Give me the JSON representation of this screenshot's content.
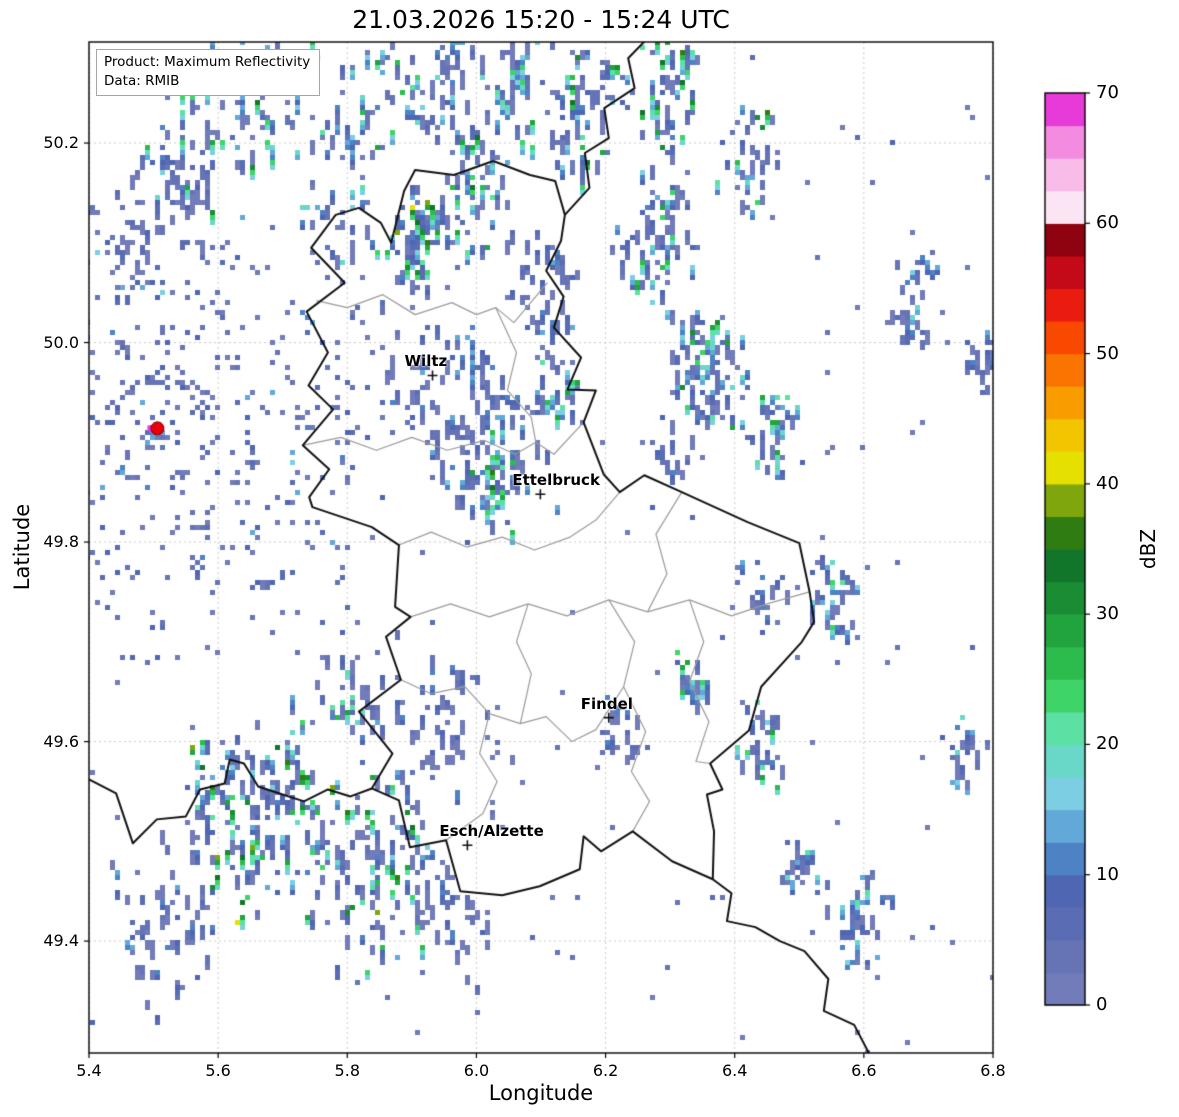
{
  "title": "21.03.2026 15:20 - 15:24 UTC",
  "info_box": {
    "product": "Product: Maximum Reflectivity",
    "data": "Data: RMIB"
  },
  "axes": {
    "xlabel": "Longitude",
    "ylabel": "Latitude",
    "xticks": [
      5.4,
      5.6,
      5.8,
      6.0,
      6.2,
      6.4,
      6.6,
      6.8
    ],
    "yticks": [
      49.4,
      49.6,
      49.8,
      50.0,
      50.2
    ],
    "xlim": [
      5.4,
      6.8
    ],
    "ylim": [
      49.2878,
      50.3013
    ],
    "grid": true
  },
  "colorbar": {
    "label": "dBZ",
    "ticks": [
      0,
      10,
      20,
      30,
      40,
      50,
      60,
      70
    ],
    "vmin": 0,
    "vmax": 70,
    "step": 2.5,
    "colors": [
      "#717cb8",
      "#6674b6",
      "#5a6db4",
      "#4f66b2",
      "#4d82c4",
      "#62a8d8",
      "#7ccfe2",
      "#6ad8c8",
      "#5ce0a4",
      "#3fd468",
      "#2cbc4e",
      "#21a43e",
      "#198c34",
      "#12762a",
      "#2f7d12",
      "#7fa60c",
      "#e6e000",
      "#f2c500",
      "#f99c00",
      "#f97400",
      "#f94800",
      "#ea1c10",
      "#c40a18",
      "#8f0310",
      "#fbe4f3",
      "#f9bce9",
      "#f38ce0",
      "#e83ad8"
    ]
  },
  "chart_data": {
    "type": "heatmap",
    "title": "21.03.2026 15:20 - 15:24 UTC",
    "xlabel": "Longitude",
    "ylabel": "Latitude",
    "xlim": [
      5.4,
      6.8
    ],
    "ylim": [
      49.2878,
      50.3013
    ],
    "value_units": "dBZ",
    "value_range": [
      0,
      70
    ],
    "product": "Maximum Reflectivity",
    "source": "RMIB",
    "radar_site": {
      "lon": 5.506,
      "lat": 49.914,
      "marker_color": "#e8000b",
      "adjacent_pixel_color": "#e83ad8"
    },
    "cities": [
      {
        "name": "Wiltz",
        "lon": 5.932,
        "lat": 49.967
      },
      {
        "name": "Ettelbruck",
        "lon": 6.099,
        "lat": 49.848
      },
      {
        "name": "Findel",
        "lon": 6.205,
        "lat": 49.624
      },
      {
        "name": "Esch/Alzette",
        "lon": 5.986,
        "lat": 49.496
      }
    ],
    "clutter_rings": {
      "lon": 5.506,
      "lat": 49.914,
      "rmax_km": 26,
      "n": 3000,
      "dmax": 9,
      "seed": 42
    },
    "speckle": {
      "n": 260,
      "dmax": 10,
      "seed": 77
    },
    "echo_clusters": [
      {
        "x": 5.62,
        "y": 50.235,
        "len": 0.3,
        "wid": 0.035,
        "ang": 30,
        "n": 150,
        "dmax": 34,
        "pow": 2.6
      },
      {
        "x": 5.5,
        "y": 50.13,
        "len": 0.18,
        "wid": 0.03,
        "ang": 25,
        "n": 60,
        "dmax": 10,
        "pow": 2.0
      },
      {
        "x": 5.82,
        "y": 50.2,
        "len": 0.24,
        "wid": 0.03,
        "ang": 55,
        "n": 110,
        "dmax": 30,
        "pow": 2.6
      },
      {
        "x": 5.95,
        "y": 50.26,
        "len": 0.12,
        "wid": 0.025,
        "ang": 60,
        "n": 60,
        "dmax": 20,
        "pow": 2.0
      },
      {
        "x": 5.9,
        "y": 50.11,
        "len": 0.1,
        "wid": 0.022,
        "ang": 65,
        "n": 85,
        "dmax": 42,
        "pow": 3.0
      },
      {
        "x": 5.99,
        "y": 50.15,
        "len": 0.12,
        "wid": 0.025,
        "ang": 65,
        "n": 80,
        "dmax": 35,
        "pow": 2.8
      },
      {
        "x": 6.06,
        "y": 50.27,
        "len": 0.12,
        "wid": 0.02,
        "ang": 60,
        "n": 55,
        "dmax": 26,
        "pow": 2.4
      },
      {
        "x": 6.16,
        "y": 50.235,
        "len": 0.14,
        "wid": 0.025,
        "ang": 60,
        "n": 85,
        "dmax": 34,
        "pow": 2.6
      },
      {
        "x": 6.3,
        "y": 50.245,
        "len": 0.12,
        "wid": 0.025,
        "ang": 65,
        "n": 75,
        "dmax": 36,
        "pow": 2.6
      },
      {
        "x": 6.28,
        "y": 50.11,
        "len": 0.13,
        "wid": 0.028,
        "ang": 65,
        "n": 95,
        "dmax": 32,
        "pow": 2.4
      },
      {
        "x": 6.35,
        "y": 49.975,
        "len": 0.1,
        "wid": 0.03,
        "ang": 70,
        "n": 115,
        "dmax": 34,
        "pow": 2.2
      },
      {
        "x": 6.43,
        "y": 50.185,
        "len": 0.1,
        "wid": 0.02,
        "ang": 65,
        "n": 55,
        "dmax": 36,
        "pow": 2.8
      },
      {
        "x": 6.46,
        "y": 49.915,
        "len": 0.08,
        "wid": 0.02,
        "ang": 70,
        "n": 45,
        "dmax": 30,
        "pow": 2.4
      },
      {
        "x": 6.1,
        "y": 50.05,
        "len": 0.1,
        "wid": 0.03,
        "ang": 60,
        "n": 60,
        "dmax": 14,
        "pow": 1.8
      },
      {
        "x": 5.97,
        "y": 49.94,
        "len": 0.14,
        "wid": 0.06,
        "ang": 45,
        "n": 160,
        "dmax": 16,
        "pow": 2.2
      },
      {
        "x": 6.03,
        "y": 49.87,
        "len": 0.08,
        "wid": 0.03,
        "ang": 50,
        "n": 70,
        "dmax": 44,
        "pow": 3.2
      },
      {
        "x": 6.12,
        "y": 49.96,
        "len": 0.06,
        "wid": 0.02,
        "ang": 60,
        "n": 35,
        "dmax": 30,
        "pow": 2.4
      },
      {
        "x": 6.55,
        "y": 49.745,
        "len": 0.07,
        "wid": 0.018,
        "ang": 65,
        "n": 45,
        "dmax": 26,
        "pow": 2.0
      },
      {
        "x": 6.67,
        "y": 50.05,
        "len": 0.09,
        "wid": 0.02,
        "ang": 65,
        "n": 45,
        "dmax": 22,
        "pow": 2.0
      },
      {
        "x": 6.78,
        "y": 49.98,
        "len": 0.06,
        "wid": 0.015,
        "ang": 60,
        "n": 25,
        "dmax": 14,
        "pow": 2.0
      },
      {
        "x": 6.44,
        "y": 49.6,
        "len": 0.07,
        "wid": 0.018,
        "ang": 65,
        "n": 45,
        "dmax": 30,
        "pow": 2.4
      },
      {
        "x": 6.33,
        "y": 49.665,
        "len": 0.04,
        "wid": 0.015,
        "ang": 60,
        "n": 25,
        "dmax": 30,
        "pow": 2.2
      },
      {
        "x": 6.75,
        "y": 49.59,
        "len": 0.07,
        "wid": 0.015,
        "ang": 70,
        "n": 30,
        "dmax": 24,
        "pow": 2.0
      },
      {
        "x": 6.6,
        "y": 49.42,
        "len": 0.1,
        "wid": 0.02,
        "ang": 60,
        "n": 45,
        "dmax": 22,
        "pow": 2.0
      },
      {
        "x": 6.5,
        "y": 49.475,
        "len": 0.05,
        "wid": 0.015,
        "ang": 60,
        "n": 25,
        "dmax": 24,
        "pow": 2.0
      },
      {
        "x": 5.85,
        "y": 49.48,
        "len": 0.16,
        "wid": 0.05,
        "ang": 25,
        "n": 150,
        "dmax": 40,
        "pow": 2.8
      },
      {
        "x": 5.66,
        "y": 49.525,
        "len": 0.18,
        "wid": 0.05,
        "ang": 15,
        "n": 200,
        "dmax": 42,
        "pow": 2.6
      },
      {
        "x": 5.52,
        "y": 49.43,
        "len": 0.14,
        "wid": 0.05,
        "ang": 20,
        "n": 80,
        "dmax": 14,
        "pow": 2.0
      },
      {
        "x": 5.96,
        "y": 49.425,
        "len": 0.08,
        "wid": 0.035,
        "ang": 55,
        "n": 50,
        "dmax": 12,
        "pow": 1.8
      },
      {
        "x": 5.8,
        "y": 49.645,
        "len": 0.07,
        "wid": 0.03,
        "ang": 40,
        "n": 55,
        "dmax": 30,
        "pow": 3.0
      },
      {
        "x": 5.95,
        "y": 49.63,
        "len": 0.12,
        "wid": 0.05,
        "ang": 45,
        "n": 70,
        "dmax": 12,
        "pow": 1.8
      },
      {
        "x": 6.22,
        "y": 49.615,
        "len": 0.05,
        "wid": 0.02,
        "ang": 60,
        "n": 25,
        "dmax": 12,
        "pow": 1.8
      },
      {
        "x": 6.44,
        "y": 49.76,
        "len": 0.05,
        "wid": 0.02,
        "ang": 60,
        "n": 30,
        "dmax": 16,
        "pow": 2.0
      },
      {
        "x": 6.3,
        "y": 49.9,
        "len": 0.05,
        "wid": 0.02,
        "ang": 60,
        "n": 30,
        "dmax": 14,
        "pow": 2.0
      }
    ]
  },
  "map": {
    "country_border": [
      [
        6.026,
        50.182
      ],
      [
        6.083,
        50.168
      ],
      [
        6.122,
        50.162
      ],
      [
        6.137,
        50.128
      ],
      [
        6.131,
        50.102
      ],
      [
        6.108,
        50.072
      ],
      [
        6.135,
        50.046
      ],
      [
        6.12,
        50.015
      ],
      [
        6.162,
        49.985
      ],
      [
        6.141,
        49.953
      ],
      [
        6.185,
        49.952
      ],
      [
        6.166,
        49.92
      ],
      [
        6.197,
        49.868
      ],
      [
        6.222,
        49.85
      ],
      [
        6.26,
        49.867
      ],
      [
        6.318,
        49.85
      ],
      [
        6.42,
        49.82
      ],
      [
        6.5,
        49.799
      ],
      [
        6.516,
        49.75
      ],
      [
        6.523,
        49.72
      ],
      [
        6.504,
        49.7
      ],
      [
        6.441,
        49.655
      ],
      [
        6.422,
        49.611
      ],
      [
        6.362,
        49.578
      ],
      [
        6.381,
        49.552
      ],
      [
        6.357,
        49.547
      ],
      [
        6.368,
        49.51
      ],
      [
        6.366,
        49.462
      ],
      [
        6.303,
        49.48
      ],
      [
        6.242,
        49.51
      ],
      [
        6.193,
        49.49
      ],
      [
        6.166,
        49.505
      ],
      [
        6.16,
        49.472
      ],
      [
        6.098,
        49.455
      ],
      [
        6.04,
        49.446
      ],
      [
        5.975,
        49.45
      ],
      [
        5.953,
        49.501
      ],
      [
        5.897,
        49.494
      ],
      [
        5.88,
        49.541
      ],
      [
        5.838,
        49.553
      ],
      [
        5.87,
        49.588
      ],
      [
        5.818,
        49.63
      ],
      [
        5.883,
        49.662
      ],
      [
        5.86,
        49.705
      ],
      [
        5.898,
        49.725
      ],
      [
        5.874,
        49.735
      ],
      [
        5.88,
        49.797
      ],
      [
        5.838,
        49.815
      ],
      [
        5.746,
        49.835
      ],
      [
        5.741,
        49.845
      ],
      [
        5.772,
        49.873
      ],
      [
        5.731,
        49.897
      ],
      [
        5.778,
        49.933
      ],
      [
        5.74,
        49.957
      ],
      [
        5.77,
        49.99
      ],
      [
        5.737,
        50.031
      ],
      [
        5.796,
        50.06
      ],
      [
        5.744,
        50.095
      ],
      [
        5.782,
        50.128
      ],
      [
        5.818,
        50.135
      ],
      [
        5.852,
        50.12
      ],
      [
        5.868,
        50.1
      ],
      [
        5.888,
        50.152
      ],
      [
        5.905,
        50.173
      ],
      [
        5.965,
        50.168
      ],
      [
        6.026,
        50.182
      ]
    ],
    "national_borders": [
      [
        [
          6.137,
          50.128
        ],
        [
          6.175,
          50.155
        ],
        [
          6.168,
          50.19
        ],
        [
          6.205,
          50.205
        ],
        [
          6.198,
          50.235
        ],
        [
          6.245,
          50.255
        ],
        [
          6.235,
          50.285
        ],
        [
          6.265,
          50.305
        ]
      ],
      [
        [
          6.366,
          49.462
        ],
        [
          6.395,
          49.448
        ],
        [
          6.388,
          49.42
        ],
        [
          6.432,
          49.414
        ],
        [
          6.47,
          49.4
        ],
        [
          6.508,
          49.39
        ],
        [
          6.545,
          49.362
        ],
        [
          6.538,
          49.33
        ],
        [
          6.585,
          49.316
        ],
        [
          6.61,
          49.285
        ]
      ],
      [
        [
          5.838,
          49.553
        ],
        [
          5.805,
          49.545
        ],
        [
          5.77,
          49.552
        ],
        [
          5.733,
          49.54
        ],
        [
          5.695,
          49.548
        ],
        [
          5.662,
          49.555
        ],
        [
          5.64,
          49.578
        ],
        [
          5.618,
          49.582
        ],
        [
          5.61,
          49.558
        ],
        [
          5.572,
          49.552
        ],
        [
          5.55,
          49.525
        ],
        [
          5.505,
          49.522
        ],
        [
          5.468,
          49.498
        ],
        [
          5.442,
          49.548
        ],
        [
          5.4,
          49.562
        ]
      ]
    ],
    "district_borders": [
      [
        [
          5.752,
          50.042
        ],
        [
          5.8,
          50.035
        ],
        [
          5.855,
          50.048
        ],
        [
          5.905,
          50.028
        ],
        [
          5.962,
          50.04
        ],
        [
          6.0,
          50.028
        ],
        [
          6.03,
          50.035
        ],
        [
          6.058,
          50.02
        ],
        [
          6.11,
          50.06
        ]
      ],
      [
        [
          5.731,
          49.897
        ],
        [
          5.79,
          49.905
        ],
        [
          5.845,
          49.892
        ],
        [
          5.9,
          49.905
        ],
        [
          5.955,
          49.892
        ],
        [
          6.012,
          49.902
        ],
        [
          6.06,
          49.888
        ],
        [
          6.092,
          49.9
        ],
        [
          6.12,
          49.888
        ],
        [
          6.166,
          49.92
        ]
      ],
      [
        [
          6.03,
          50.035
        ],
        [
          6.062,
          49.99
        ],
        [
          6.048,
          49.952
        ],
        [
          6.085,
          49.925
        ],
        [
          6.092,
          49.9
        ]
      ],
      [
        [
          5.88,
          49.797
        ],
        [
          5.93,
          49.81
        ],
        [
          5.985,
          49.795
        ],
        [
          6.04,
          49.805
        ],
        [
          6.09,
          49.792
        ],
        [
          6.145,
          49.805
        ],
        [
          6.185,
          49.822
        ],
        [
          6.222,
          49.85
        ]
      ],
      [
        [
          5.898,
          49.725
        ],
        [
          5.96,
          49.738
        ],
        [
          6.02,
          49.725
        ],
        [
          6.08,
          49.738
        ],
        [
          6.14,
          49.726
        ],
        [
          6.205,
          49.742
        ],
        [
          6.265,
          49.73
        ],
        [
          6.33,
          49.742
        ],
        [
          6.395,
          49.726
        ],
        [
          6.45,
          49.738
        ],
        [
          6.516,
          49.75
        ]
      ],
      [
        [
          6.205,
          49.742
        ],
        [
          6.245,
          49.7
        ],
        [
          6.228,
          49.655
        ],
        [
          6.262,
          49.61
        ],
        [
          6.24,
          49.57
        ],
        [
          6.268,
          49.54
        ],
        [
          6.242,
          49.51
        ]
      ],
      [
        [
          5.883,
          49.662
        ],
        [
          5.93,
          49.648
        ],
        [
          5.982,
          49.655
        ],
        [
          6.02,
          49.628
        ],
        [
          6.005,
          49.588
        ],
        [
          6.032,
          49.56
        ],
        [
          6.01,
          49.528
        ],
        [
          5.953,
          49.501
        ]
      ],
      [
        [
          6.02,
          49.628
        ],
        [
          6.068,
          49.618
        ],
        [
          6.108,
          49.625
        ],
        [
          6.148,
          49.6
        ],
        [
          6.185,
          49.612
        ],
        [
          6.228,
          49.655
        ]
      ],
      [
        [
          6.08,
          49.738
        ],
        [
          6.062,
          49.7
        ],
        [
          6.085,
          49.668
        ],
        [
          6.068,
          49.618
        ]
      ],
      [
        [
          6.33,
          49.742
        ],
        [
          6.352,
          49.7
        ],
        [
          6.33,
          49.66
        ],
        [
          6.36,
          49.62
        ],
        [
          6.34,
          49.58
        ],
        [
          6.362,
          49.578
        ]
      ],
      [
        [
          6.265,
          49.73
        ],
        [
          6.295,
          49.768
        ],
        [
          6.278,
          49.808
        ],
        [
          6.318,
          49.85
        ]
      ]
    ]
  }
}
